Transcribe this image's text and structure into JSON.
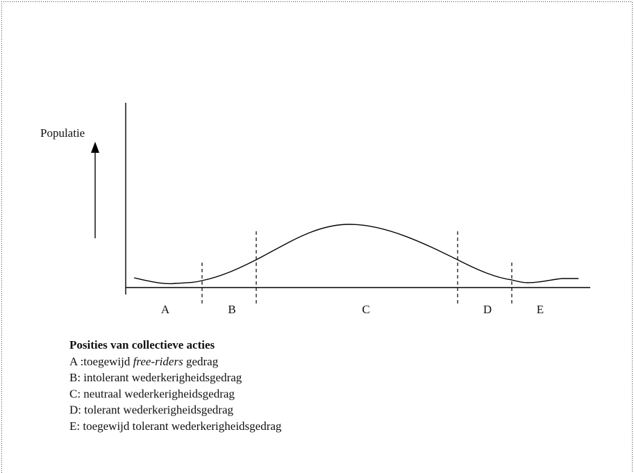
{
  "diagram": {
    "y_axis_label": "Populatie",
    "zones": [
      "A",
      "B",
      "C",
      "D",
      "E"
    ],
    "legend": {
      "title": "Posities van collectieve acties",
      "items": [
        {
          "parts": [
            "A :toegewijd ",
            "free-riders",
            " gedrag"
          ]
        },
        {
          "parts": [
            "B: intolerant wederkerigheidsgedrag"
          ]
        },
        {
          "parts": [
            "C: neutraal wederkerigheidsgedrag"
          ]
        },
        {
          "parts": [
            "D: tolerant wederkerigheidsgedrag"
          ]
        },
        {
          "parts": [
            "E: toegewijd tolerant wederkerigheidsgedrag"
          ]
        }
      ]
    }
  }
}
